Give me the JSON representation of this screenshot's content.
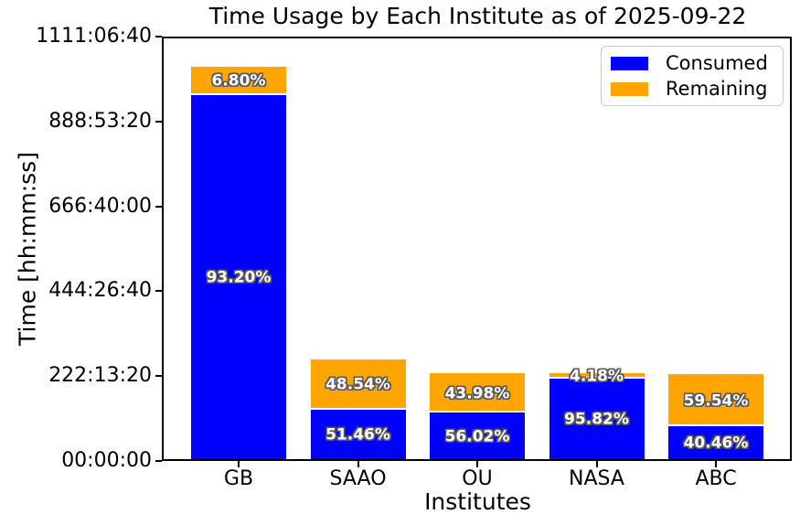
{
  "chart_data": {
    "type": "bar",
    "stacked": true,
    "title": "Time Usage by Each Institute as of 2025-09-22",
    "xlabel": "Institutes",
    "ylabel": "Time [hh:mm:ss]",
    "categories": [
      "GB",
      "SAAO",
      "OU",
      "NASA",
      "ABC"
    ],
    "totals_seconds_est": [
      3700000,
      943000,
      810000,
      813000,
      802000
    ],
    "series": [
      {
        "name": "Consumed",
        "color": "#0000ff",
        "pct": [
          93.2,
          51.46,
          56.02,
          95.82,
          40.46
        ],
        "labels": [
          "93.20%",
          "51.46%",
          "56.02%",
          "95.82%",
          "40.46%"
        ]
      },
      {
        "name": "Remaining",
        "color": "#ffa500",
        "pct": [
          6.8,
          48.54,
          43.98,
          4.18,
          59.54
        ],
        "labels": [
          "6.80%",
          "48.54%",
          "43.98%",
          "4.18%",
          "59.54%"
        ]
      }
    ],
    "y_ticks": [
      {
        "value": 0,
        "label": "00:00:00"
      },
      {
        "value": 800000,
        "label": "222:13:20"
      },
      {
        "value": 1600000,
        "label": "444:26:40"
      },
      {
        "value": 2400000,
        "label": "666:40:00"
      },
      {
        "value": 3200000,
        "label": "888:53:20"
      },
      {
        "value": 4000000,
        "label": "1111:06:40"
      }
    ],
    "ylim": [
      0,
      4000000
    ],
    "grid": false,
    "legend": {
      "position": "upper right",
      "entries": [
        "Consumed",
        "Remaining"
      ]
    },
    "colors": {
      "consumed": "#0000ff",
      "remaining": "#ffa500",
      "segment_divider": "#ffffff",
      "label_text": "#ffffff",
      "label_outline": "#595959"
    }
  }
}
